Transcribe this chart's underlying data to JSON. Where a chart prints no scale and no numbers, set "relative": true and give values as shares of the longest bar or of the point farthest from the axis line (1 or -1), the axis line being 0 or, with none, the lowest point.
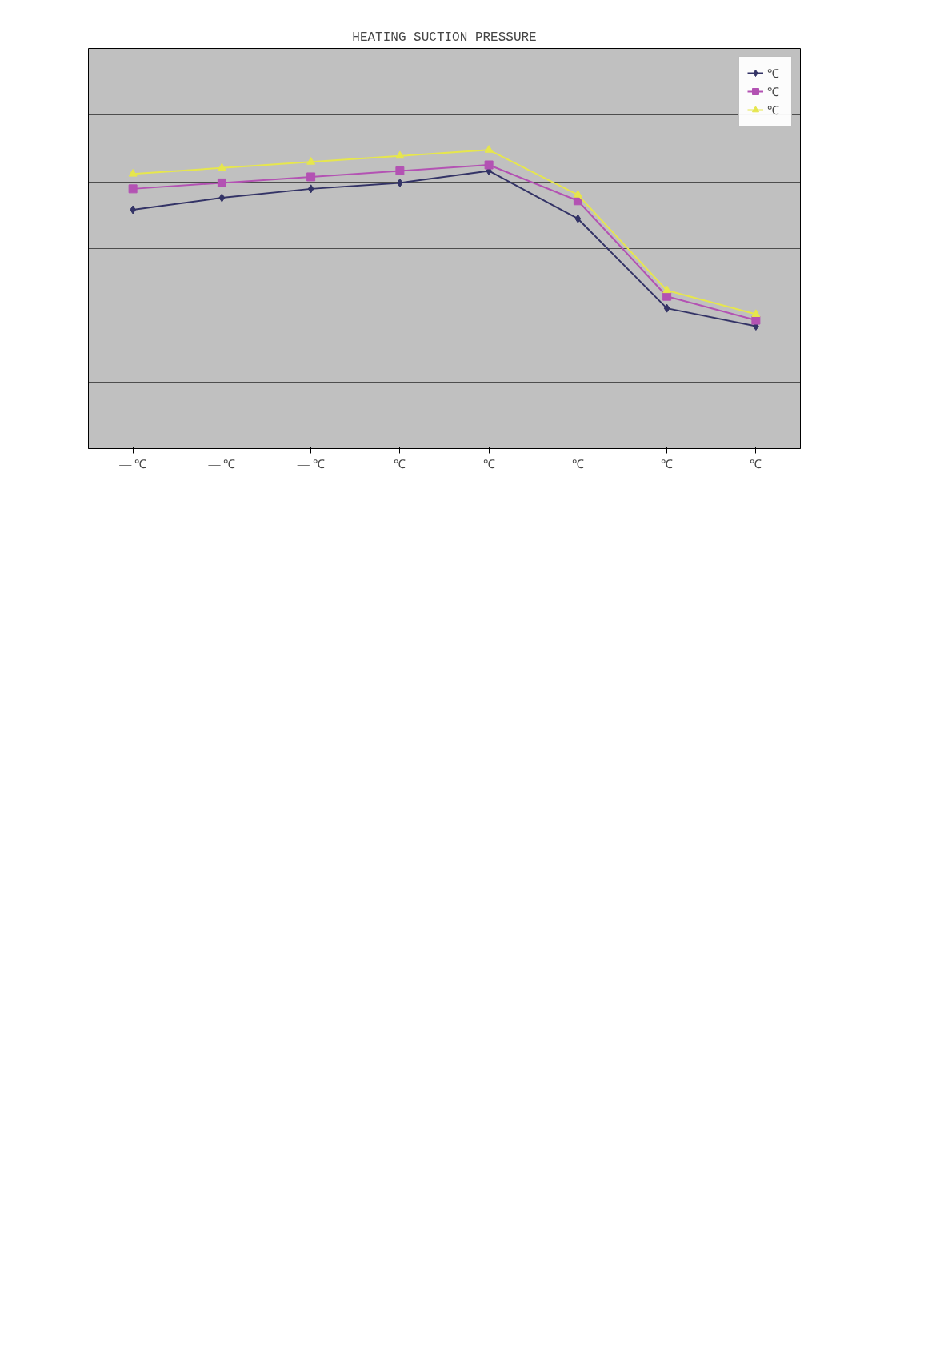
{
  "chart_data": {
    "type": "line",
    "title": "HEATING SUCTION PRESSURE",
    "relative": true,
    "categories": [
      "— ℃",
      "— ℃",
      "— ℃",
      "℃",
      "℃",
      "℃",
      "℃",
      "℃"
    ],
    "series": [
      {
        "name": "℃",
        "color": "#333366",
        "marker": "diamond",
        "values": [
          0.8,
          0.84,
          0.87,
          0.89,
          0.93,
          0.77,
          0.47,
          0.41
        ]
      },
      {
        "name": "℃",
        "color": "#b352b3",
        "marker": "square",
        "values": [
          0.87,
          0.89,
          0.91,
          0.93,
          0.95,
          0.83,
          0.51,
          0.43
        ]
      },
      {
        "name": "℃",
        "color": "#e6e64d",
        "marker": "triangle",
        "values": [
          0.92,
          0.94,
          0.96,
          0.98,
          1.0,
          0.85,
          0.53,
          0.45
        ]
      }
    ],
    "grid": "y",
    "legend": "top right",
    "line_style": "solid"
  }
}
